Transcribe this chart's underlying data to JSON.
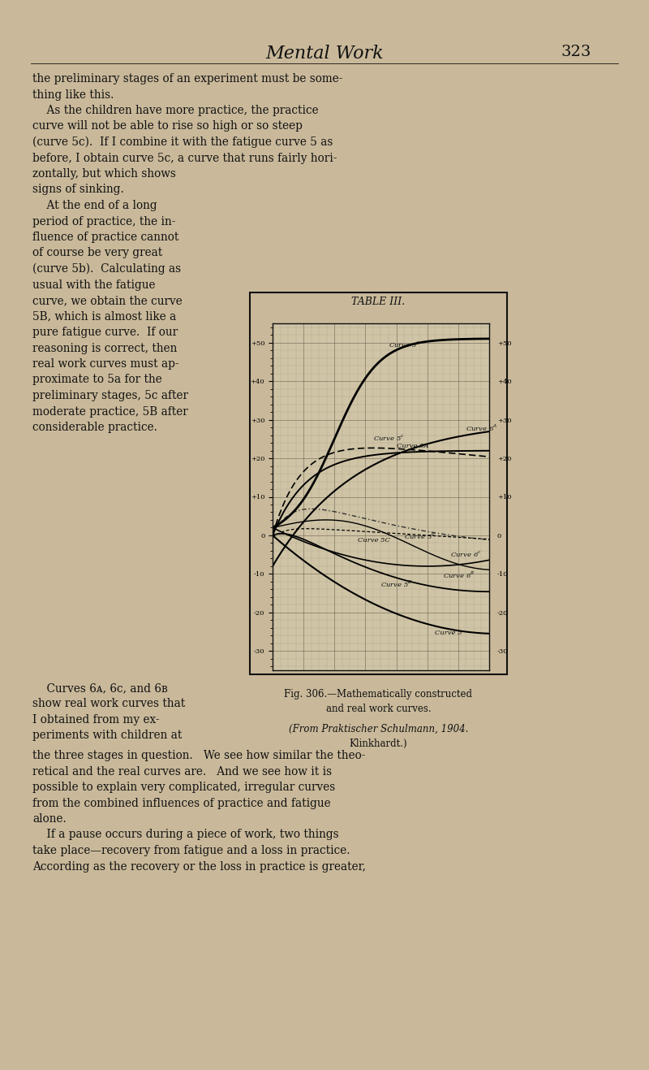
{
  "page_bg": "#c9b99a",
  "header_title": "Mental Work",
  "header_page": "323",
  "chart_title": "TABLE III.",
  "grid_bg": "#cfc4a5",
  "ylim": [
    -35,
    55
  ],
  "xlim": [
    0,
    14
  ],
  "yticks": [
    -30,
    -20,
    -10,
    0,
    10,
    20,
    30,
    40,
    50
  ],
  "full_lines_top": [
    "the preliminary stages of an experiment must be some-",
    "thing like this.",
    "    As the children have more practice, the practice",
    "curve will not be able to rise so high or so steep",
    "(curve 5c).  If I combine it with the fatigue curve 5 as",
    "before, I obtain curve 5c, a curve that runs fairly hori-"
  ],
  "left_col_lines": [
    "zontally, but which shows",
    "signs of sinking.",
    "    At the end of a long",
    "period of practice, the in-",
    "fluence of practice cannot",
    "of course be very great",
    "(curve 5b).  Calculating as",
    "usual with the fatigue",
    "curve, we obtain the curve",
    "5B, which is almost like a",
    "pure fatigue curve.  If our",
    "reasoning is correct, then",
    "real work curves must ap-",
    "proximate to 5a for the",
    "preliminary stages, 5c after",
    "moderate practice, 5B after",
    "considerable practice."
  ],
  "left_beside_cap": [
    "    Curves 6ᴀ, 6c, and 6ʙ",
    "show real work curves that",
    "I obtained from my ex-",
    "periments with children at"
  ],
  "caption_line1": "Fig. 306.—Mathematically constructed",
  "caption_line2": "and real work curves.",
  "caption_line3": "(From Praktischer Schulmann, 1904.",
  "caption_line4": "Klinkhardt.)",
  "full_lower": [
    "the three stages in question.   We see how similar the theo-",
    "retical and the real curves are.   And we see how it is",
    "possible to explain very complicated, irregular curves",
    "from the combined influences of practice and fatigue",
    "alone.",
    "    If a pause occurs during a piece of work, two things",
    "take place—recovery from fatigue and a loss in practice.",
    "According as the recovery or the loss in practice is greater,"
  ]
}
